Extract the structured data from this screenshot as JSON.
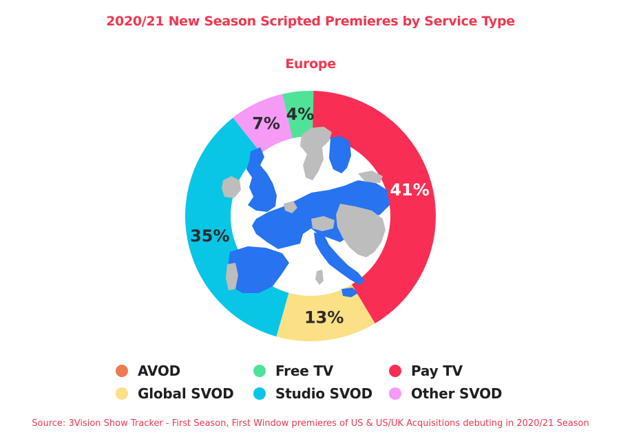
{
  "chart_data": {
    "type": "pie",
    "title": "2020/21 New Season Scripted Premieres by Service Type",
    "subtitle": "Europe",
    "categories": [
      "AVOD",
      "Free TV",
      "Pay TV",
      "Global SVOD",
      "Studio SVOD",
      "Other SVOD"
    ],
    "values": [
      0,
      4,
      41,
      13,
      35,
      7
    ],
    "slice_labels": [
      "",
      "4%",
      "41%",
      "13%",
      "35%",
      "7%"
    ],
    "slice_order": [
      "Free TV",
      "Pay TV",
      "Global SVOD",
      "Studio SVOD",
      "Other SVOD"
    ],
    "colors": {
      "AVOD": "#ef7a52",
      "Free TV": "#4fe39a",
      "Pay TV": "#f92e55",
      "Global SVOD": "#fbe086",
      "Studio SVOD": "#0ac6e6",
      "Other SVOD": "#f59af5"
    },
    "label_colors": {
      "Free TV": "#2b2b2b",
      "Pay TV": "#ffffff",
      "Global SVOD": "#2b2b2b",
      "Studio SVOD": "#2b2b2b",
      "Other SVOD": "#2b2b2b"
    },
    "legend": [
      "AVOD",
      "Free TV",
      "Pay TV",
      "Global SVOD",
      "Studio SVOD",
      "Other SVOD"
    ],
    "legend_position": "bottom",
    "center_image": "europe-map"
  },
  "source": "Source: 3Vision Show Tracker - First Season, First Window premieres of US & US/UK Acquisitions debuting in 2020/21 Season"
}
